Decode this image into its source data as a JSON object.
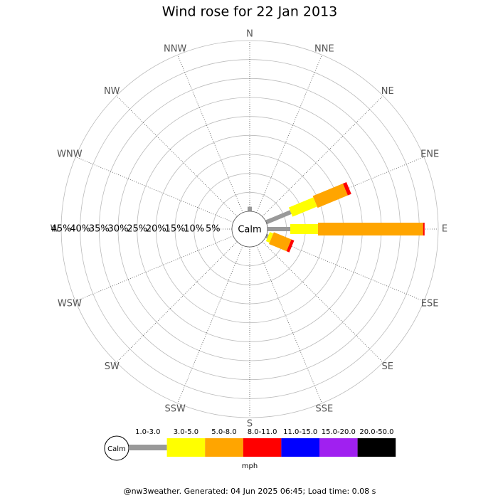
{
  "chart_data": {
    "type": "windrose",
    "title": "Wind rose for 22 Jan 2013",
    "directions": [
      "N",
      "NNE",
      "NE",
      "ENE",
      "E",
      "ESE",
      "SE",
      "SSE",
      "S",
      "SSW",
      "SW",
      "WSW",
      "W",
      "WNW",
      "NW",
      "NNW"
    ],
    "calm_label": "Calm",
    "unit": "mph",
    "rlim": [
      0,
      45
    ],
    "rticks": [
      {
        "value": 5,
        "label": "5%"
      },
      {
        "value": 10,
        "label": "10%"
      },
      {
        "value": 15,
        "label": "15%"
      },
      {
        "value": 20,
        "label": "20%"
      },
      {
        "value": 25,
        "label": "25%"
      },
      {
        "value": 30,
        "label": "30%"
      },
      {
        "value": 35,
        "label": "35%"
      },
      {
        "value": 40,
        "label": "40%"
      },
      {
        "value": 45,
        "label": "45%"
      }
    ],
    "series": [
      {
        "name": "1.0-3.0",
        "color": "#999999",
        "values": [
          1.2,
          0,
          0,
          7,
          6,
          0.5,
          0,
          0,
          0,
          0,
          0,
          0,
          0,
          0,
          0,
          0
        ]
      },
      {
        "name": "3.0-5.0",
        "color": "#ffff00",
        "values": [
          0,
          0,
          0,
          7,
          7.3,
          1,
          0,
          0,
          0,
          0,
          0,
          0,
          0,
          0,
          0,
          0
        ]
      },
      {
        "name": "5.0-8.0",
        "color": "#ffa500",
        "values": [
          0,
          0,
          0,
          8.6,
          27.7,
          5,
          0,
          0,
          0,
          0,
          0,
          0,
          0,
          0,
          0,
          0
        ]
      },
      {
        "name": "8.0-11.0",
        "color": "#ff0000",
        "values": [
          0,
          0,
          0,
          1,
          0.4,
          0.8,
          0,
          0,
          0,
          0,
          0,
          0,
          0,
          0,
          0,
          0
        ]
      },
      {
        "name": "11.0-15.0",
        "color": "#0000ff",
        "values": [
          0,
          0,
          0,
          0,
          0,
          0,
          0,
          0,
          0,
          0,
          0,
          0,
          0,
          0,
          0,
          0
        ]
      },
      {
        "name": "15.0-20.0",
        "color": "#a020f0",
        "values": [
          0,
          0,
          0,
          0,
          0,
          0,
          0,
          0,
          0,
          0,
          0,
          0,
          0,
          0,
          0,
          0
        ]
      },
      {
        "name": "20.0-50.0",
        "color": "#000000",
        "values": [
          0,
          0,
          0,
          0,
          0,
          0,
          0,
          0,
          0,
          0,
          0,
          0,
          0,
          0,
          0,
          0
        ]
      }
    ],
    "footer": "@nw3weather. Generated: 04 Jun 2025 06:45; Load time: 0.08 s"
  }
}
